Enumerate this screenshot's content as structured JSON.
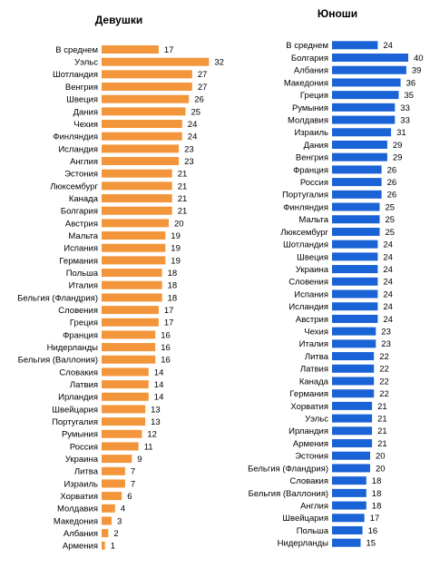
{
  "colors": {
    "girls": "#f3963b",
    "boys": "#1a63d6"
  },
  "chart_data": [
    {
      "type": "bar",
      "orientation": "horizontal",
      "title": "Девушки",
      "categories": [
        "В среднем",
        "Уэльс",
        "Шотландия",
        "Венгрия",
        "Швеция",
        "Дания",
        "Чехия",
        "Финляндия",
        "Исландия",
        "Англия",
        "Эстония",
        "Люксембург",
        "Канада",
        "Болгария",
        "Австрия",
        "Мальта",
        "Испания",
        "Германия",
        "Польша",
        "Италия",
        "Бельгия (Фландрия)",
        "Словения",
        "Греция",
        "Франция",
        "Нидерланды",
        "Бельгия (Валлония)",
        "Словакия",
        "Латвия",
        "Ирландия",
        "Швейцария",
        "Португалия",
        "Румыния",
        "Россия",
        "Украина",
        "Литва",
        "Израиль",
        "Хорватия",
        "Молдавия",
        "Македония",
        "Албания",
        "Армения"
      ],
      "values": [
        17,
        32,
        27,
        27,
        26,
        25,
        24,
        24,
        23,
        23,
        21,
        21,
        21,
        21,
        20,
        19,
        19,
        19,
        18,
        18,
        18,
        17,
        17,
        16,
        16,
        16,
        14,
        14,
        14,
        13,
        13,
        12,
        11,
        9,
        7,
        7,
        6,
        4,
        3,
        2,
        1
      ],
      "xlim": [
        0,
        32
      ]
    },
    {
      "type": "bar",
      "orientation": "horizontal",
      "title": "Юноши",
      "categories": [
        "В среднем",
        "Болгария",
        "Албания",
        "Македония",
        "Греция",
        "Румыния",
        "Молдавия",
        "Израиль",
        "Дания",
        "Венгрия",
        "Франция",
        "Россия",
        "Португалия",
        "Финляндия",
        "Мальта",
        "Люксембург",
        "Шотландия",
        "Швеция",
        "Украина",
        "Словения",
        "Испания",
        "Исландия",
        "Австрия",
        "Чехия",
        "Италия",
        "Литва",
        "Латвия",
        "Канада",
        "Германия",
        "Хорватия",
        "Уэльс",
        "Ирландия",
        "Армения",
        "Эстония",
        "Бельгия (Фландрия)",
        "Словакия",
        "Бельгия (Валлония)",
        "Англия",
        "Швейцария",
        "Польша",
        "Нидерланды"
      ],
      "values": [
        24,
        40,
        39,
        36,
        35,
        33,
        33,
        31,
        29,
        29,
        26,
        26,
        26,
        25,
        25,
        25,
        24,
        24,
        24,
        24,
        24,
        24,
        24,
        23,
        23,
        22,
        22,
        22,
        22,
        21,
        21,
        21,
        21,
        20,
        20,
        18,
        18,
        18,
        17,
        16,
        15
      ],
      "xlim": [
        0,
        40
      ]
    }
  ]
}
